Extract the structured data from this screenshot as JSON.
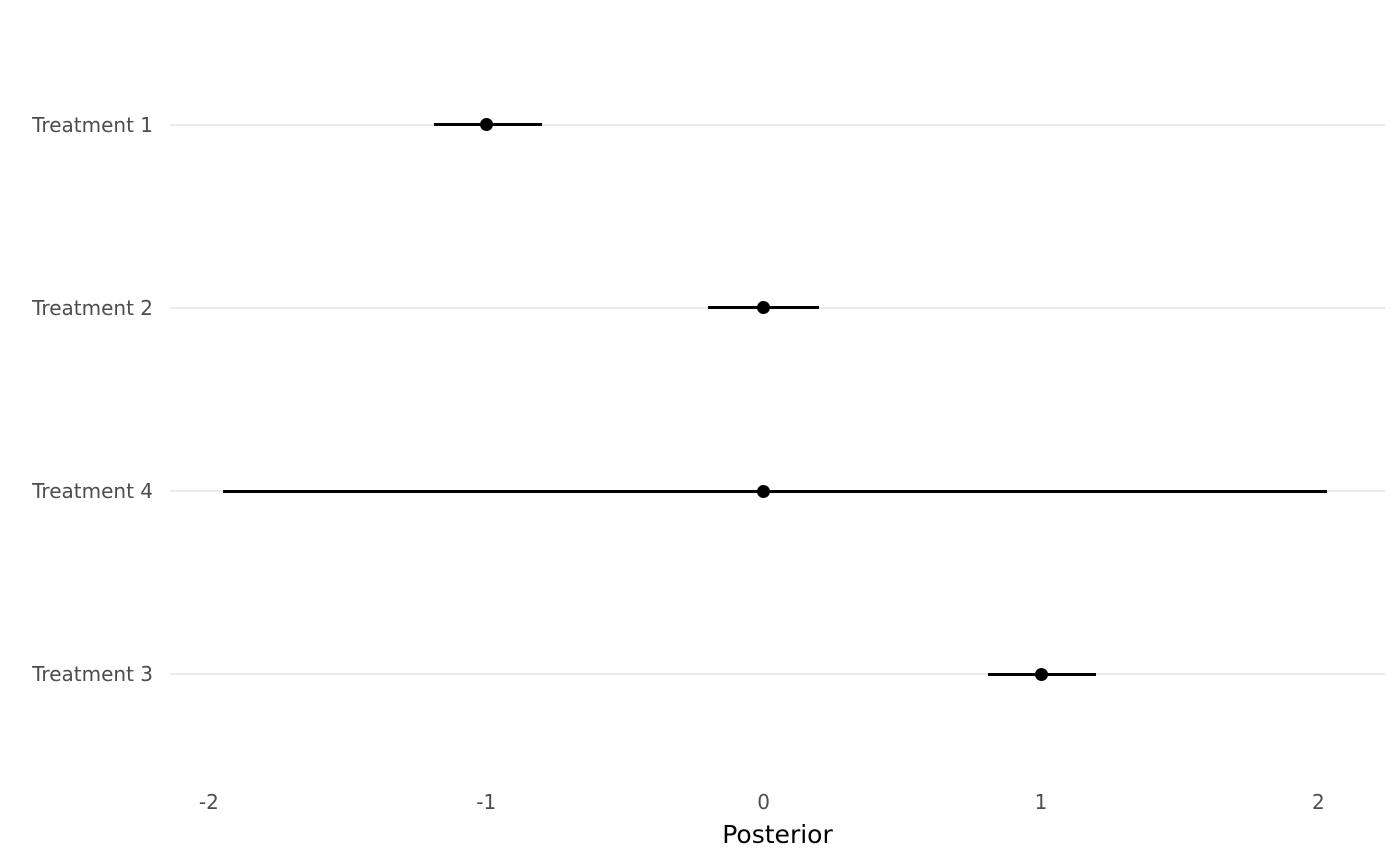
{
  "chart_data": {
    "type": "pointrange",
    "orientation": "horizontal",
    "title": "",
    "xlabel": "Posterior",
    "ylabel": "",
    "categories_top_to_bottom": [
      "Treatment 1",
      "Treatment 2",
      "Treatment 4",
      "Treatment 3"
    ],
    "series": [
      {
        "name": "Treatment 1",
        "estimate": -1.0,
        "lower": -1.19,
        "upper": -0.8
      },
      {
        "name": "Treatment 2",
        "estimate": 0.0,
        "lower": -0.2,
        "upper": 0.2
      },
      {
        "name": "Treatment 4",
        "estimate": 0.0,
        "lower": -1.95,
        "upper": 2.03
      },
      {
        "name": "Treatment 3",
        "estimate": 1.0,
        "lower": 0.81,
        "upper": 1.2
      }
    ],
    "x_ticks": [
      -2,
      -1,
      0,
      1,
      2
    ],
    "x_tick_labels": [
      "-2",
      "-1",
      "0",
      "1",
      "2"
    ],
    "xlim": [
      -2.14,
      2.24
    ],
    "grid": "horizontal-major-only",
    "legend": "none",
    "colors": {
      "point": "#000000",
      "interval": "#000000",
      "gridline": "#EBEBEB",
      "axis_text": "#4D4D4D",
      "axis_title": "#000000",
      "background": "#FFFFFF"
    }
  }
}
